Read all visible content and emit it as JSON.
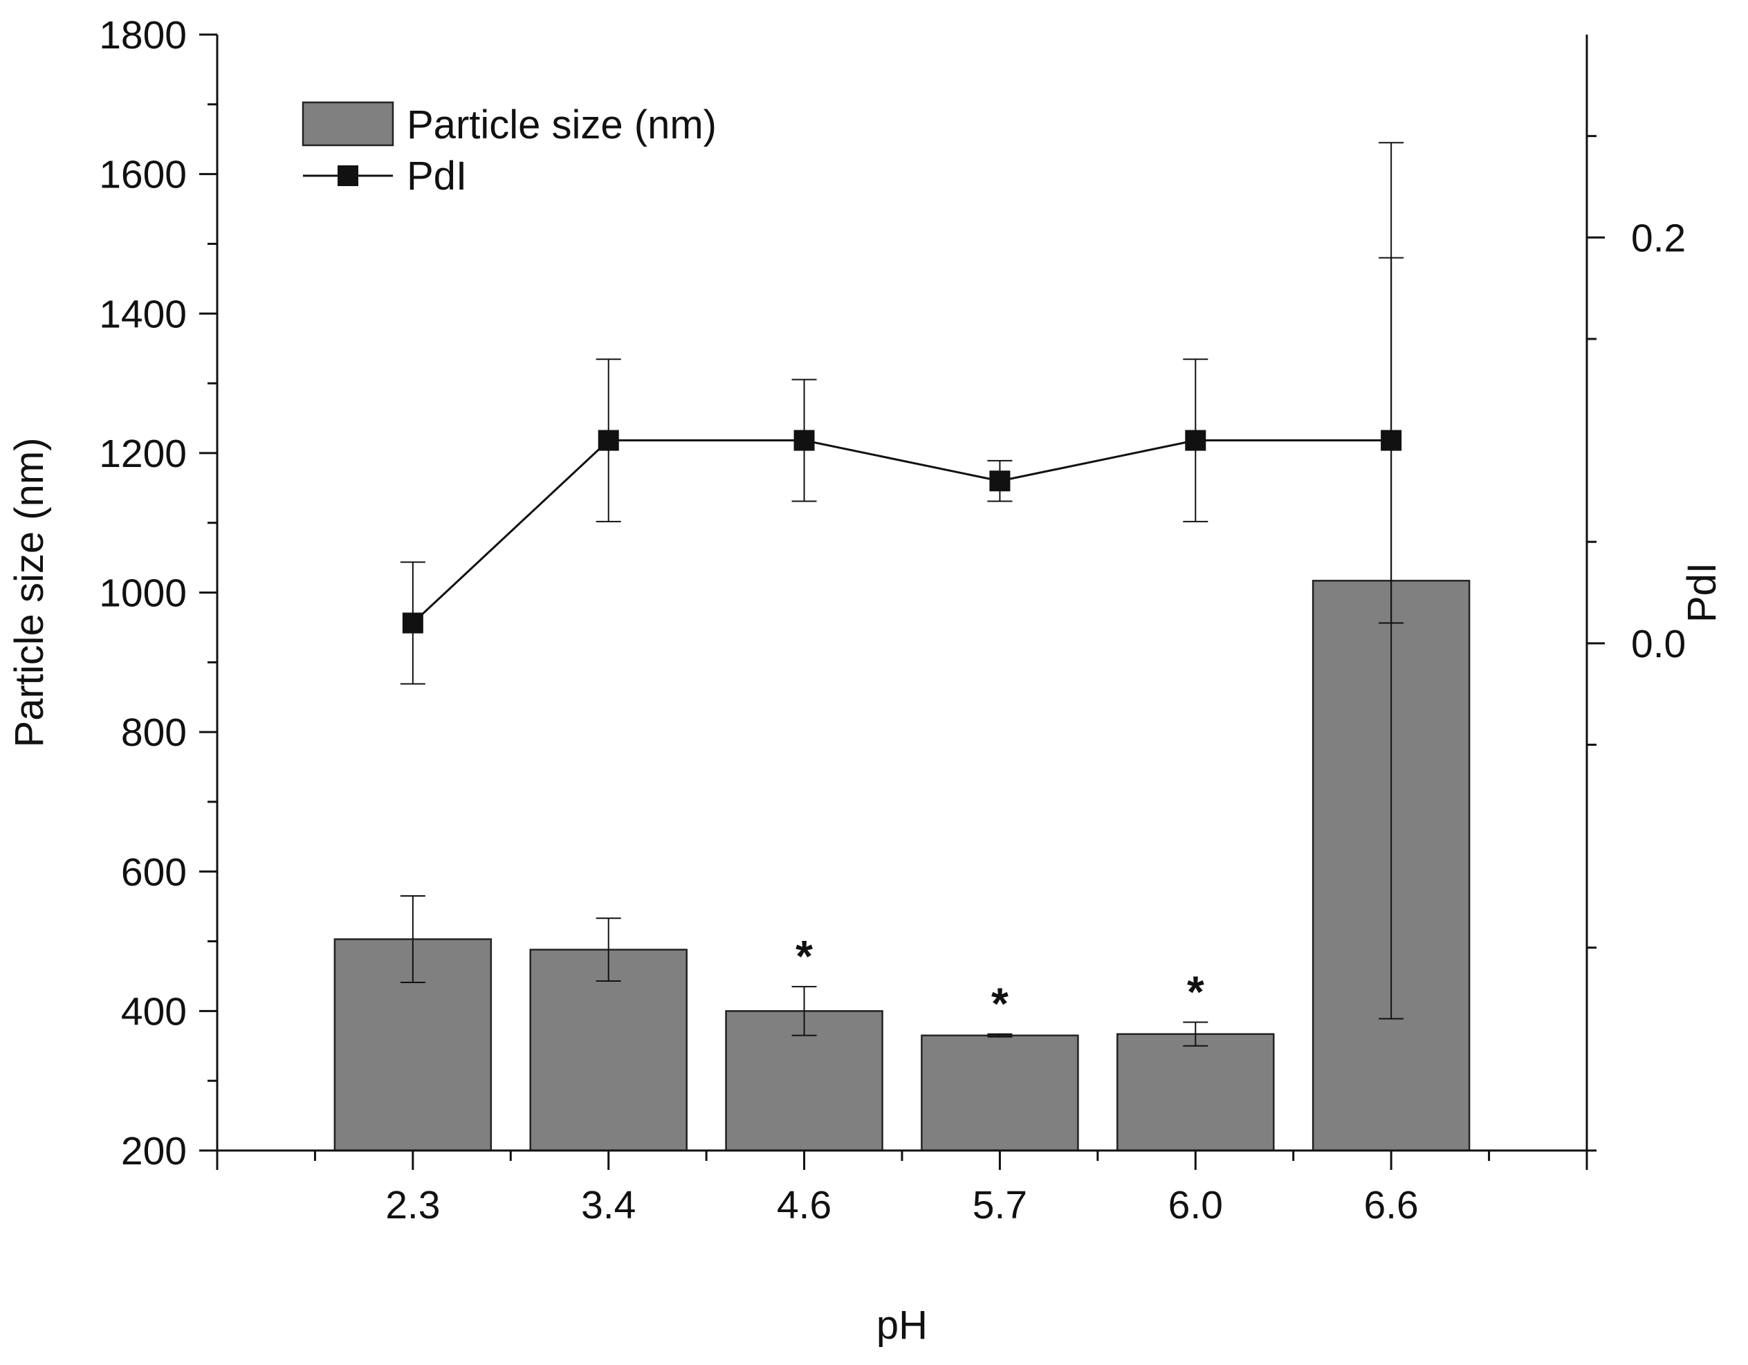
{
  "chart_data": {
    "type": "bar",
    "title": "",
    "xlabel": "pH",
    "ylabel": "Particle size (nm)",
    "y2label": "PdI",
    "categories": [
      "2.3",
      "3.4",
      "4.6",
      "5.7",
      "6.0",
      "6.6"
    ],
    "ylim": [
      200,
      1800
    ],
    "y2lim": [
      -0.25,
      0.3
    ],
    "yticks": [
      "200",
      "400",
      "600",
      "800",
      "1000",
      "1200",
      "1400",
      "1600",
      "1800"
    ],
    "y2ticks": [
      "0.0",
      "0.2"
    ],
    "y2tick_values": [
      0,
      0.2
    ],
    "legend_position": "top-left",
    "series": [
      {
        "name": "Particle size (nm)",
        "kind": "bar",
        "axis": "left",
        "values": [
          503,
          488,
          400,
          365,
          367,
          1017
        ],
        "errors": [
          62,
          45,
          35,
          2,
          17,
          628
        ],
        "color": "#808080"
      },
      {
        "name": "PdI",
        "kind": "line",
        "axis": "right",
        "values": [
          0.01,
          0.1,
          0.1,
          0.08,
          0.1,
          0.1
        ],
        "errors": [
          0.03,
          0.04,
          0.03,
          0.01,
          0.04,
          0.09
        ],
        "color": "#000000"
      }
    ],
    "annotations": [
      "",
      "",
      "*",
      "*",
      "*",
      ""
    ],
    "colors": {
      "bar_fill": "#808080",
      "bar_stroke": "#222222",
      "axis": "#111111",
      "line": "#111111"
    }
  }
}
